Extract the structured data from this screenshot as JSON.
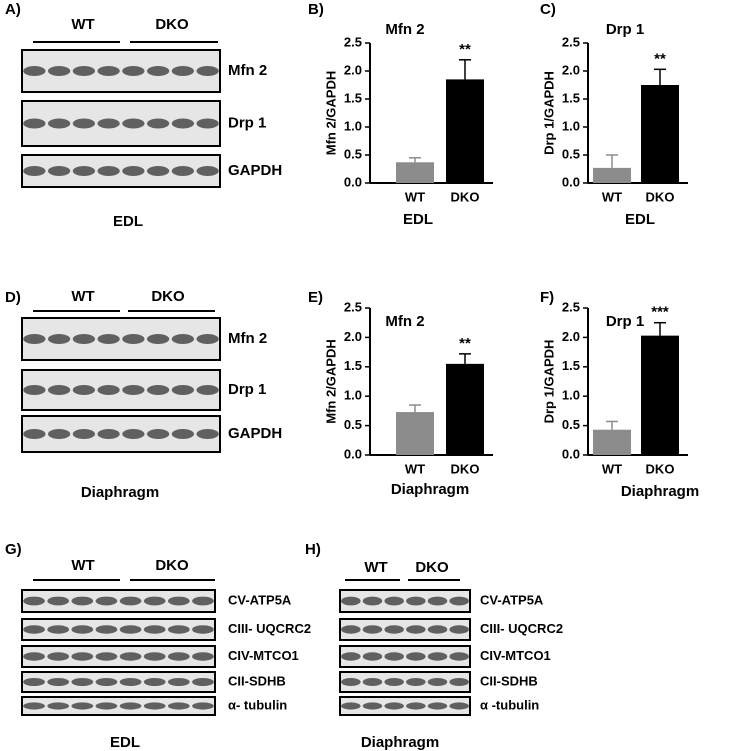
{
  "blots": [
    {
      "label": "A)",
      "groups": [
        "WT",
        "DKO"
      ],
      "bands": [
        "Mfn 2",
        "Drp 1",
        "GAPDH"
      ],
      "caption": "EDL"
    },
    {
      "label": "D)",
      "groups": [
        "WT",
        "DKO"
      ],
      "bands": [
        "Mfn 2",
        "Drp 1",
        "GAPDH"
      ],
      "caption": "Diaphragm"
    },
    {
      "label": "G)",
      "groups": [
        "WT",
        "DKO"
      ],
      "bands": [
        "CV-ATP5A",
        "CIII- UQCRC2",
        "CIV-MTCO1",
        "CII-SDHB",
        "α- tubulin"
      ],
      "caption": "EDL"
    },
    {
      "label": "H)",
      "groups": [
        "WT",
        "DKO"
      ],
      "bands": [
        "CV-ATP5A",
        "CIII- UQCRC2",
        "CIV-MTCO1",
        "CII-SDHB",
        "α -tubulin"
      ],
      "caption": "Diaphragm"
    }
  ],
  "chart_data": [
    {
      "type": "bar",
      "label": "B)",
      "title": "Mfn 2",
      "ylabel": "Mfn 2/GAPDH",
      "xlabel": "EDL",
      "categories": [
        "WT",
        "DKO"
      ],
      "values": [
        0.37,
        1.85
      ],
      "errors": [
        0.08,
        0.35
      ],
      "colors": [
        "#8c8c8c",
        "#000000"
      ],
      "annotation": "**",
      "ylim": [
        0,
        2.5
      ],
      "yticks": [
        {
          "value": 0,
          "label": "0.0"
        },
        0.5,
        {
          "value": 1,
          "label": "1.0"
        },
        1.5,
        {
          "value": 2,
          "label": "2.0"
        },
        2.5
      ]
    },
    {
      "type": "bar",
      "label": "C)",
      "title": "Drp 1",
      "ylabel": "Drp 1/GAPDH",
      "xlabel": "EDL",
      "categories": [
        "WT",
        "DKO"
      ],
      "values": [
        0.27,
        1.75
      ],
      "errors": [
        0.23,
        0.28
      ],
      "colors": [
        "#8c8c8c",
        "#000000"
      ],
      "annotation": "**",
      "ylim": [
        0,
        2.5
      ],
      "yticks": [
        {
          "value": 0,
          "label": "0.0"
        },
        0.5,
        {
          "value": 1,
          "label": "1.0"
        },
        1.5,
        {
          "value": 2,
          "label": "2.0"
        },
        2.5
      ]
    },
    {
      "type": "bar",
      "label": "E)",
      "title": "Mfn 2",
      "ylabel": "Mfn 2/GAPDH",
      "xlabel": "Diaphragm",
      "categories": [
        "WT",
        "DKO"
      ],
      "values": [
        0.73,
        1.55
      ],
      "errors": [
        0.12,
        0.17
      ],
      "colors": [
        "#8c8c8c",
        "#000000"
      ],
      "annotation": "**",
      "ylim": [
        0,
        2.5
      ],
      "yticks": [
        {
          "value": 0,
          "label": "0.0"
        },
        0.5,
        {
          "value": 1,
          "label": "1.0"
        },
        1.5,
        {
          "value": 2,
          "label": "2.0"
        },
        2.5
      ]
    },
    {
      "type": "bar",
      "label": "F)",
      "title": "Drp 1",
      "ylabel": "Drp 1/GAPDH",
      "xlabel": "Diaphragm",
      "categories": [
        "WT",
        "DKO"
      ],
      "values": [
        0.43,
        2.03
      ],
      "errors": [
        0.14,
        0.22
      ],
      "colors": [
        "#8c8c8c",
        "#000000"
      ],
      "annotation": "***",
      "ylim": [
        0,
        2.5
      ],
      "yticks": [
        {
          "value": 0,
          "label": "0.0"
        },
        0.5,
        {
          "value": 1,
          "label": "1.0"
        },
        1.5,
        {
          "value": 2,
          "label": "2.0"
        },
        2.5
      ]
    }
  ]
}
